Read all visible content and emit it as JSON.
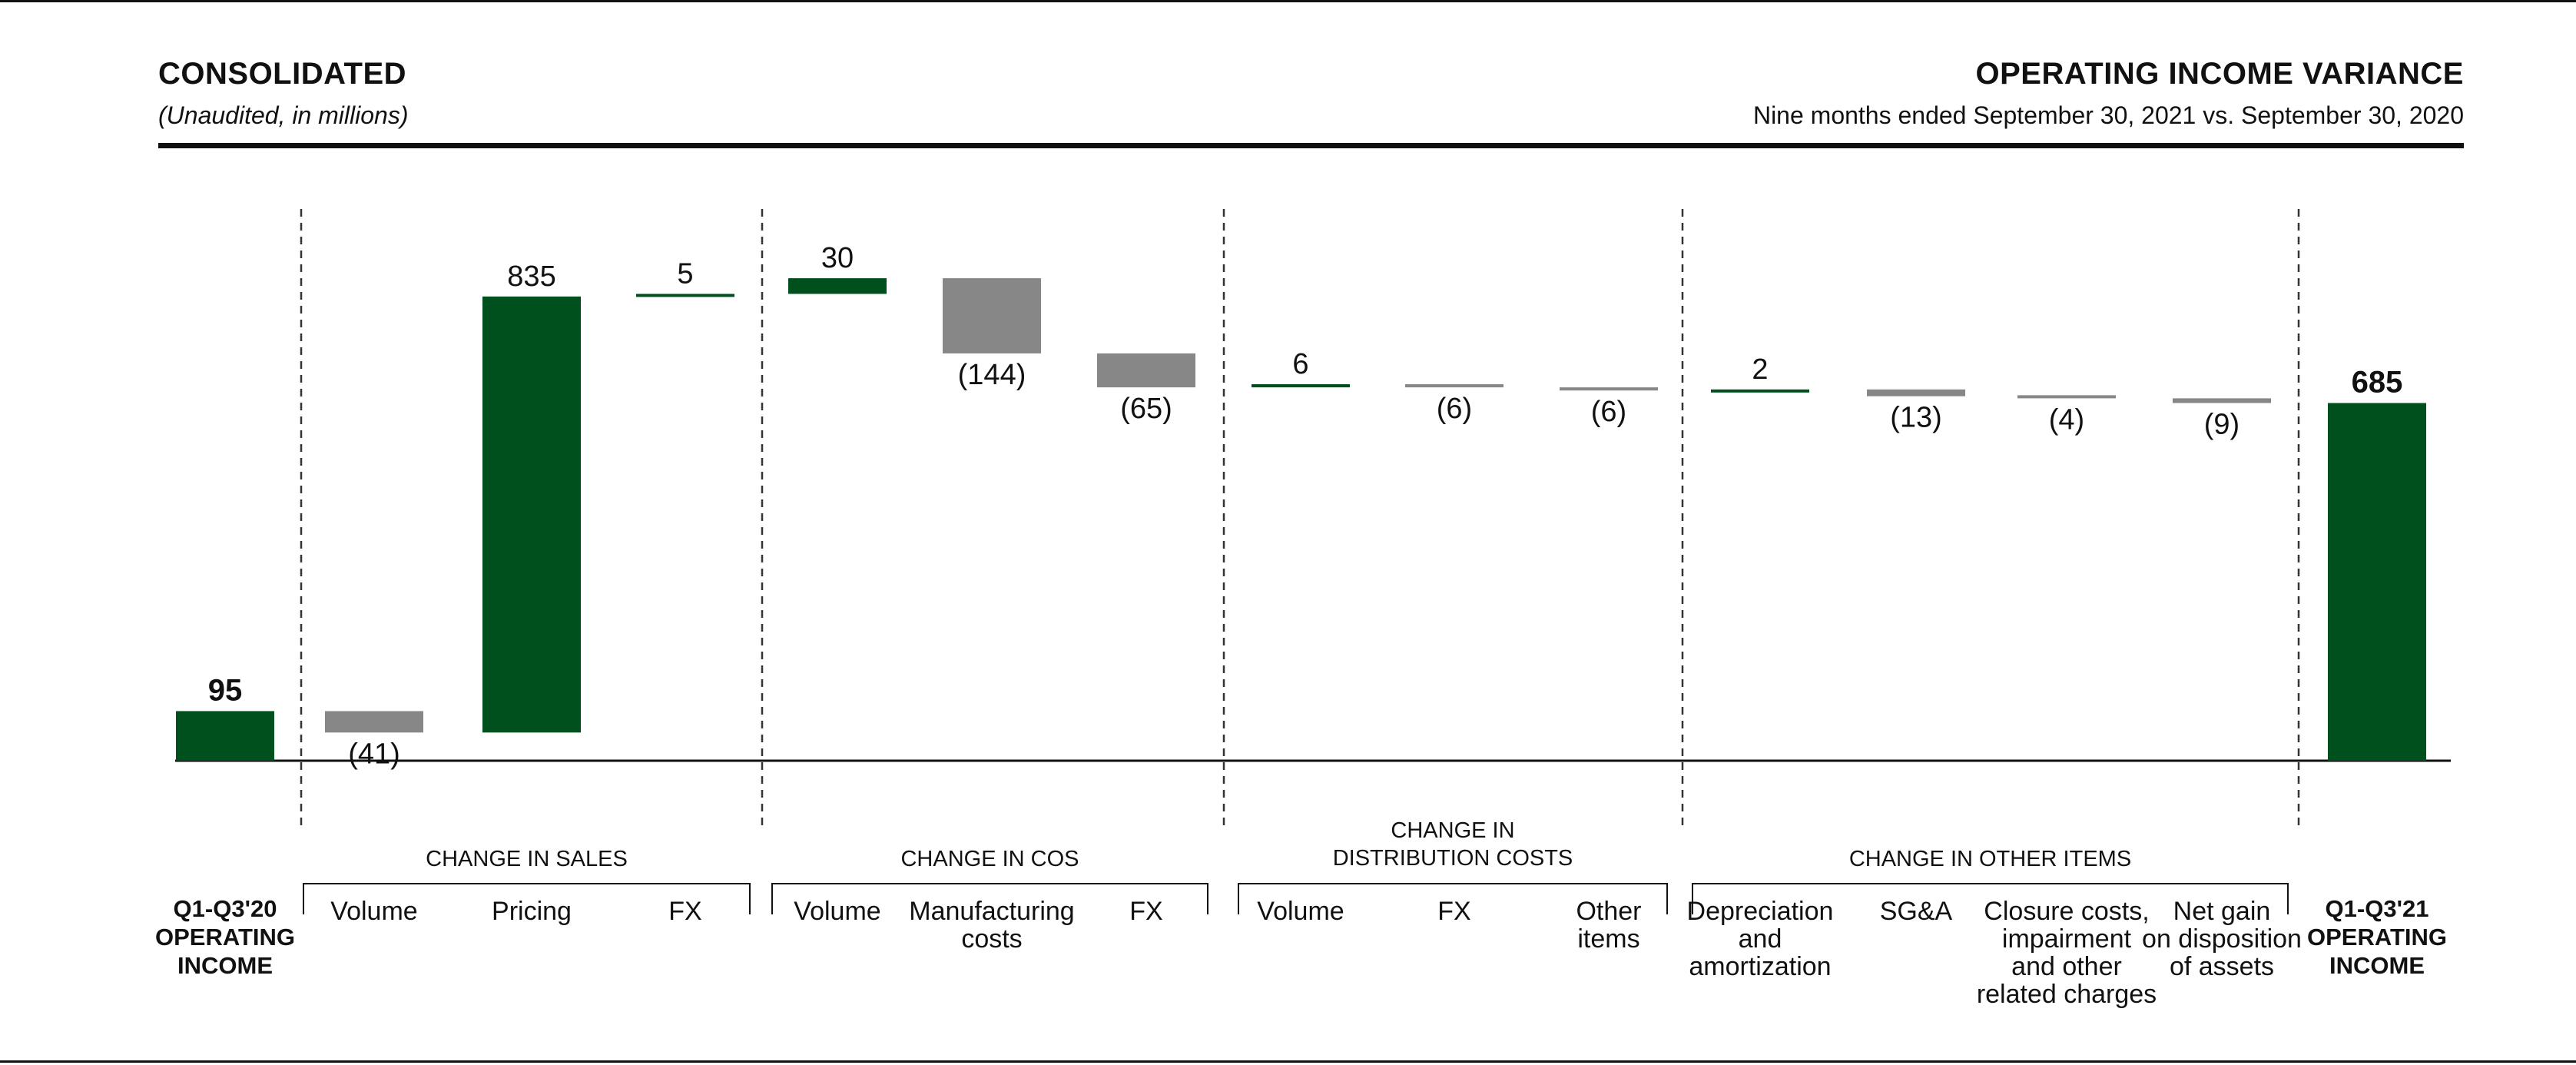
{
  "header": {
    "title_left": "CONSOLIDATED",
    "subtitle_left": "(Unaudited, in millions)",
    "title_right": "OPERATING INCOME VARIANCE",
    "subtitle_right": "Nine months ended September 30, 2021 vs. September 30, 2020"
  },
  "colors": {
    "positive": "#00501E",
    "negative": "#878787",
    "text": "#111111",
    "rule": "#333333"
  },
  "chart_data": {
    "type": "bar",
    "subtype": "waterfall",
    "title": "OPERATING INCOME VARIANCE",
    "subtitle": "Nine months ended September 30, 2021 vs. September 30, 2020",
    "units": "(Unaudited, in millions)",
    "start": {
      "label_lines": [
        "Q1-Q3'20",
        "OPERATING",
        "INCOME"
      ],
      "value": 95,
      "value_label": "95"
    },
    "end": {
      "label_lines": [
        "Q1-Q3'21",
        "OPERATING",
        "INCOME"
      ],
      "value": 685,
      "value_label": "685"
    },
    "groups": [
      {
        "title_lines": [
          "CHANGE IN SALES"
        ],
        "items": [
          {
            "label_lines": [
              "Volume"
            ],
            "value": -41,
            "value_label": "(41)"
          },
          {
            "label_lines": [
              "Pricing"
            ],
            "value": 835,
            "value_label": "835"
          },
          {
            "label_lines": [
              "FX"
            ],
            "value": 5,
            "value_label": "5"
          }
        ]
      },
      {
        "title_lines": [
          "CHANGE IN COS"
        ],
        "items": [
          {
            "label_lines": [
              "Volume"
            ],
            "value": 30,
            "value_label": "30"
          },
          {
            "label_lines": [
              "Manufacturing",
              "costs"
            ],
            "value": -144,
            "value_label": "(144)"
          },
          {
            "label_lines": [
              "FX"
            ],
            "value": -65,
            "value_label": "(65)"
          }
        ]
      },
      {
        "title_lines": [
          "CHANGE IN",
          "DISTRIBUTION COSTS"
        ],
        "items": [
          {
            "label_lines": [
              "Volume"
            ],
            "value": 6,
            "value_label": "6"
          },
          {
            "label_lines": [
              "FX"
            ],
            "value": -6,
            "value_label": "(6)"
          },
          {
            "label_lines": [
              "Other",
              "items"
            ],
            "value": -6,
            "value_label": "(6)"
          }
        ]
      },
      {
        "title_lines": [
          "CHANGE IN OTHER ITEMS"
        ],
        "items": [
          {
            "label_lines": [
              "Depreciation",
              "and",
              "amortization"
            ],
            "value": 2,
            "value_label": "2"
          },
          {
            "label_lines": [
              "SG&A"
            ],
            "value": -13,
            "value_label": "(13)"
          },
          {
            "label_lines": [
              "Closure costs,",
              "impairment",
              "and other",
              "related charges"
            ],
            "value": -4,
            "value_label": "(4)"
          },
          {
            "label_lines": [
              "Net gain",
              "on disposition",
              "of assets"
            ],
            "value": -9,
            "value_label": "(9)"
          }
        ]
      }
    ]
  }
}
